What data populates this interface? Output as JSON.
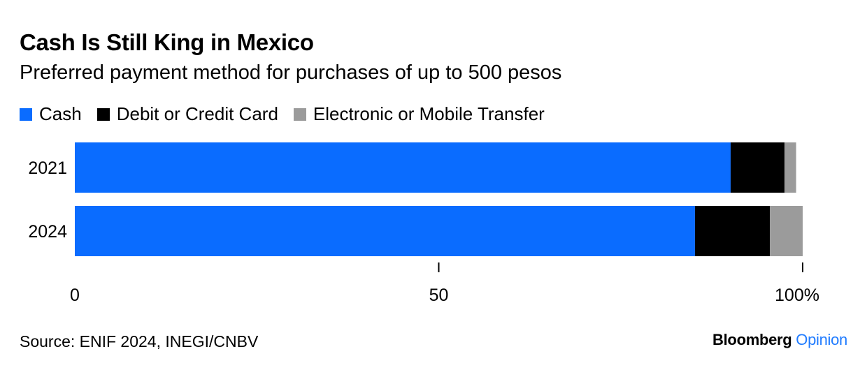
{
  "title": "Cash Is Still King in Mexico",
  "subtitle": "Preferred payment method for purchases of up to 500 pesos",
  "source": "Source: ENIF 2024, INEGI/CNBV",
  "brand": {
    "name": "Bloomberg",
    "suffix": "Opinion"
  },
  "colors": {
    "cash": "#0a6cff",
    "card": "#000000",
    "transfer": "#9b9b9b",
    "axis": "#000000"
  },
  "chart_data": {
    "type": "bar",
    "orientation": "horizontal",
    "stacked": true,
    "categories": [
      "2021",
      "2024"
    ],
    "series": [
      {
        "name": "Cash",
        "color": "#0a6cff",
        "values": [
          90.1,
          85.2
        ]
      },
      {
        "name": "Debit or Credit Card",
        "color": "#000000",
        "values": [
          7.4,
          10.3
        ]
      },
      {
        "name": "Electronic or Mobile Transfer",
        "color": "#9b9b9b",
        "values": [
          1.6,
          4.5
        ]
      }
    ],
    "xlim": [
      0,
      100
    ],
    "xticks": [
      0,
      50,
      100
    ],
    "xtick_labels": [
      "0",
      "50",
      "100%"
    ],
    "legend_placement": "top-left",
    "grid": false
  }
}
